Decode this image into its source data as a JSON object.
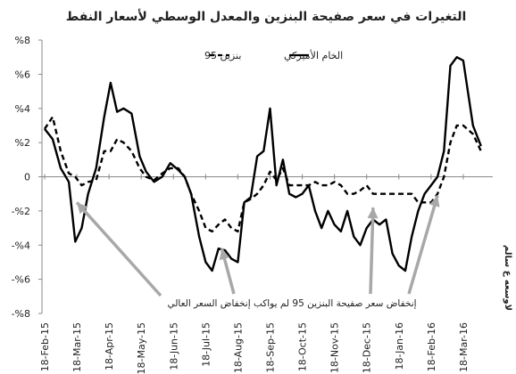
{
  "chart_data": {
    "type": "line",
    "title": "التغيرات في سعر صفيحة البنزين والمعدل الوسطي لأسعار النفط",
    "x_tick_labels": [
      "18-Feb-15",
      "18-Mar-15",
      "18-Apr-15",
      "18-May-15",
      "18-Jun-15",
      "18-Jul-15",
      "18-Aug-15",
      "18-Sep-15",
      "18-Oct-15",
      "18-Nov-15",
      "18-Dec-15",
      "18-Jan-16",
      "18-Feb-16",
      "18-Mar-16"
    ],
    "y_tick_labels": [
      "%8",
      "%6",
      "%4",
      "%2",
      "0",
      "-%2",
      "-%4",
      "-%6",
      "-%8"
    ],
    "ylim": [
      -8,
      8
    ],
    "grid": false,
    "legend_position": "top-right",
    "series": [
      {
        "name": "الخام الأميركي",
        "style": "solid",
        "color": "#000000",
        "points": [
          [
            0,
            2.8
          ],
          [
            0.25,
            2.2
          ],
          [
            0.5,
            0.5
          ],
          [
            0.75,
            -0.3
          ],
          [
            0.95,
            -3.8
          ],
          [
            1.15,
            -3.0
          ],
          [
            1.35,
            -1.0
          ],
          [
            1.6,
            0.5
          ],
          [
            1.85,
            3.5
          ],
          [
            2.05,
            5.5
          ],
          [
            2.25,
            3.8
          ],
          [
            2.45,
            4.0
          ],
          [
            2.7,
            3.7
          ],
          [
            2.95,
            1.2
          ],
          [
            3.15,
            0.3
          ],
          [
            3.4,
            -0.3
          ],
          [
            3.65,
            0.0
          ],
          [
            3.9,
            0.8
          ],
          [
            4.15,
            0.4
          ],
          [
            4.35,
            0.0
          ],
          [
            4.55,
            -1.0
          ],
          [
            4.8,
            -3.5
          ],
          [
            5.0,
            -5.0
          ],
          [
            5.2,
            -5.5
          ],
          [
            5.4,
            -4.2
          ],
          [
            5.6,
            -4.3
          ],
          [
            5.8,
            -4.8
          ],
          [
            6.0,
            -5.0
          ],
          [
            6.2,
            -1.5
          ],
          [
            6.4,
            -1.2
          ],
          [
            6.6,
            1.2
          ],
          [
            6.8,
            1.5
          ],
          [
            7.0,
            4.0
          ],
          [
            7.2,
            -0.5
          ],
          [
            7.4,
            1.0
          ],
          [
            7.6,
            -1.0
          ],
          [
            7.8,
            -1.2
          ],
          [
            8.0,
            -1.0
          ],
          [
            8.2,
            -0.5
          ],
          [
            8.4,
            -2.0
          ],
          [
            8.6,
            -3.0
          ],
          [
            8.8,
            -2.0
          ],
          [
            9.0,
            -2.8
          ],
          [
            9.2,
            -3.2
          ],
          [
            9.4,
            -2.0
          ],
          [
            9.6,
            -3.5
          ],
          [
            9.8,
            -4.0
          ],
          [
            10.0,
            -3.0
          ],
          [
            10.2,
            -2.5
          ],
          [
            10.4,
            -2.8
          ],
          [
            10.6,
            -2.5
          ],
          [
            10.8,
            -4.5
          ],
          [
            11.0,
            -5.2
          ],
          [
            11.2,
            -5.5
          ],
          [
            11.4,
            -3.5
          ],
          [
            11.6,
            -2.0
          ],
          [
            11.8,
            -1.0
          ],
          [
            12.0,
            -0.5
          ],
          [
            12.2,
            0.0
          ],
          [
            12.4,
            1.5
          ],
          [
            12.6,
            6.5
          ],
          [
            12.8,
            7.0
          ],
          [
            13.0,
            6.8
          ],
          [
            13.3,
            3.0
          ],
          [
            13.55,
            1.8
          ]
        ]
      },
      {
        "name": "بنزين 95",
        "style": "dashed",
        "color": "#000000",
        "points": [
          [
            0,
            2.8
          ],
          [
            0.25,
            3.5
          ],
          [
            0.5,
            1.5
          ],
          [
            0.75,
            0.2
          ],
          [
            0.95,
            0.0
          ],
          [
            1.15,
            -0.5
          ],
          [
            1.35,
            -0.3
          ],
          [
            1.6,
            -0.2
          ],
          [
            1.85,
            1.5
          ],
          [
            2.05,
            1.5
          ],
          [
            2.25,
            2.2
          ],
          [
            2.45,
            2.0
          ],
          [
            2.7,
            1.5
          ],
          [
            2.95,
            0.5
          ],
          [
            3.15,
            0.0
          ],
          [
            3.4,
            -0.2
          ],
          [
            3.65,
            0.2
          ],
          [
            3.9,
            0.5
          ],
          [
            4.15,
            0.5
          ],
          [
            4.35,
            0.0
          ],
          [
            4.55,
            -1.0
          ],
          [
            4.8,
            -2.0
          ],
          [
            5.0,
            -3.0
          ],
          [
            5.2,
            -3.2
          ],
          [
            5.4,
            -2.8
          ],
          [
            5.6,
            -2.5
          ],
          [
            5.8,
            -3.0
          ],
          [
            6.0,
            -3.2
          ],
          [
            6.2,
            -1.5
          ],
          [
            6.4,
            -1.3
          ],
          [
            6.6,
            -1.0
          ],
          [
            6.8,
            -0.5
          ],
          [
            7.0,
            0.3
          ],
          [
            7.2,
            -0.2
          ],
          [
            7.4,
            0.5
          ],
          [
            7.6,
            -0.5
          ],
          [
            7.8,
            -0.5
          ],
          [
            8.0,
            -0.5
          ],
          [
            8.2,
            -0.5
          ],
          [
            8.4,
            -0.3
          ],
          [
            8.6,
            -0.5
          ],
          [
            8.8,
            -0.5
          ],
          [
            9.0,
            -0.3
          ],
          [
            9.2,
            -0.5
          ],
          [
            9.4,
            -1.0
          ],
          [
            9.6,
            -1.0
          ],
          [
            9.8,
            -0.8
          ],
          [
            10.0,
            -0.5
          ],
          [
            10.2,
            -1.0
          ],
          [
            10.4,
            -1.0
          ],
          [
            10.6,
            -1.0
          ],
          [
            10.8,
            -1.0
          ],
          [
            11.0,
            -1.0
          ],
          [
            11.2,
            -1.0
          ],
          [
            11.4,
            -1.0
          ],
          [
            11.6,
            -1.5
          ],
          [
            11.8,
            -1.5
          ],
          [
            12.0,
            -1.5
          ],
          [
            12.2,
            -1.0
          ],
          [
            12.4,
            0.0
          ],
          [
            12.6,
            2.0
          ],
          [
            12.8,
            3.0
          ],
          [
            13.0,
            3.0
          ],
          [
            13.3,
            2.5
          ],
          [
            13.55,
            1.5
          ]
        ]
      }
    ],
    "annotations": [
      {
        "text": "إنخفاض سعر صفيحة البنزين 95 لم يواكب إنخفاض السعر العالي",
        "arrows_to": [
          [
            1.0,
            -1.5
          ],
          [
            5.5,
            -4.2
          ],
          [
            10.2,
            -1.8
          ],
          [
            12.2,
            -1.1
          ]
        ]
      }
    ],
    "credit": "لاوسعه ع سالم"
  }
}
